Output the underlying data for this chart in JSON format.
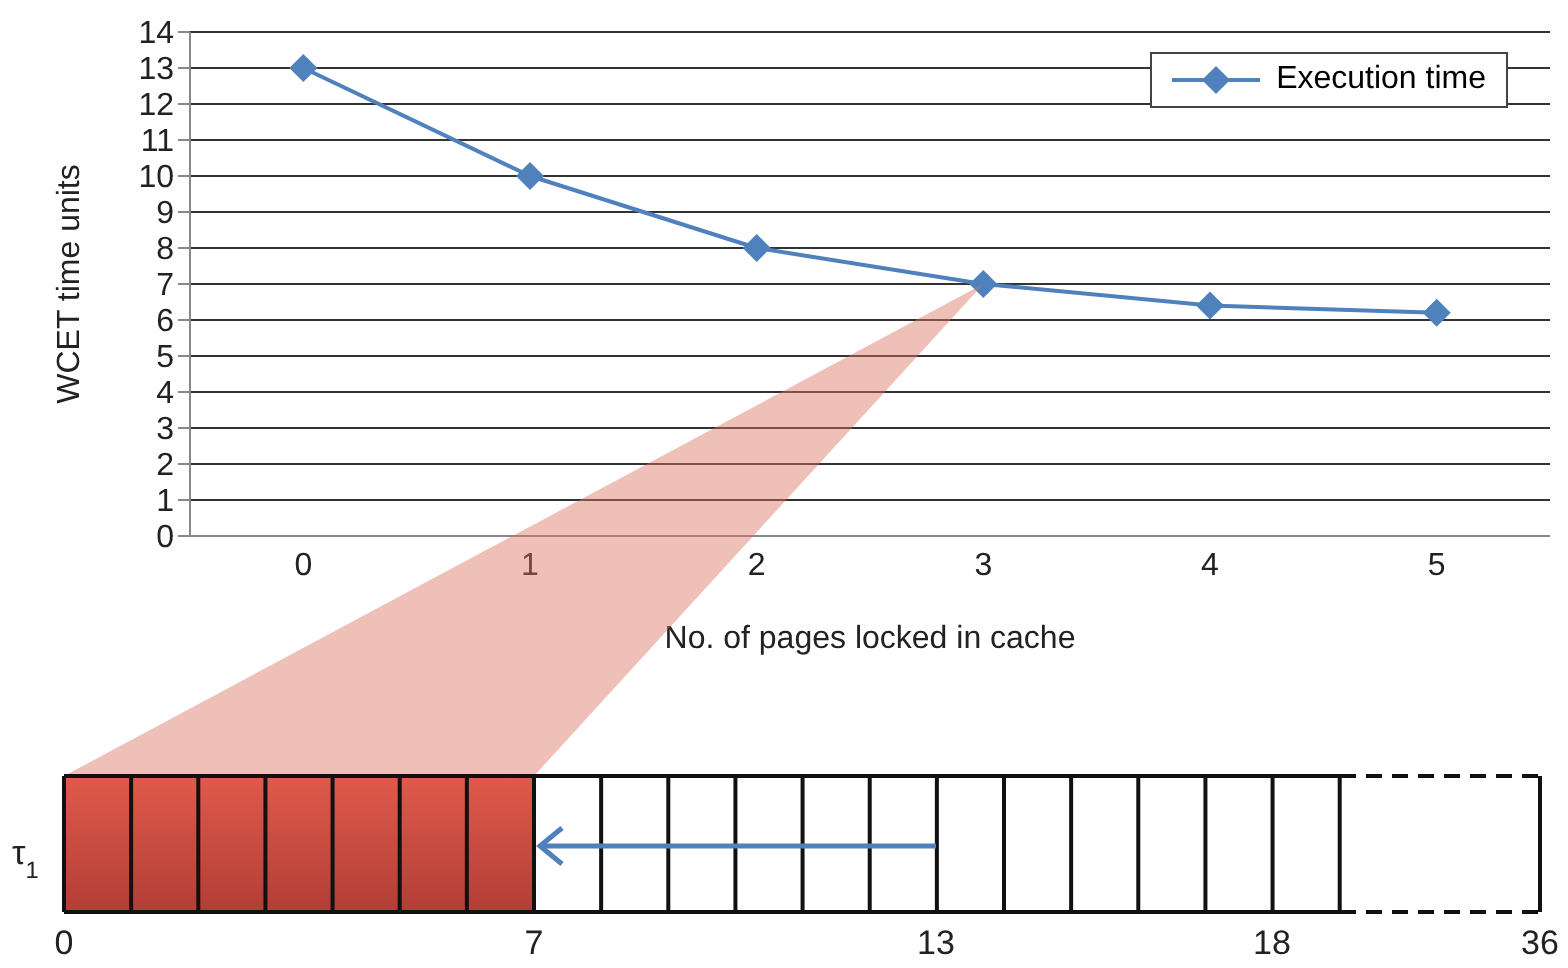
{
  "chart_data": {
    "type": "line",
    "xlabel": "No. of pages locked in cache",
    "ylabel": "WCET time units",
    "categories": [
      "0",
      "1",
      "2",
      "3",
      "4",
      "5"
    ],
    "series": [
      {
        "name": "Execution time",
        "color": "#4f81bd",
        "values": [
          13,
          10,
          8,
          7,
          6.4,
          6.2
        ]
      }
    ],
    "ylim": [
      0,
      14
    ],
    "yticks": [
      0,
      1,
      2,
      3,
      4,
      5,
      6,
      7,
      8,
      9,
      10,
      11,
      12,
      13,
      14
    ],
    "grid": "y",
    "legend": "top right",
    "marker": "diamond",
    "line_style": "solid",
    "annotations": [
      "τ$_{1}$",
      "0",
      "7",
      "13",
      "18",
      "36"
    ]
  }
}
